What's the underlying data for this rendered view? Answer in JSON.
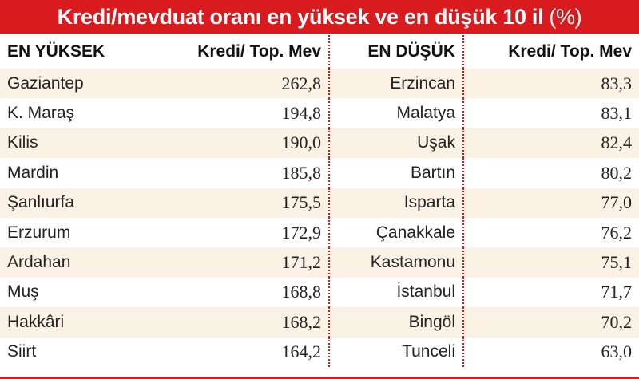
{
  "title": "Kredi/mevduat oranı en yüksek ve en düşük 10 il",
  "title_unit": "(%)",
  "headers": {
    "high_label": "EN YÜKSEK",
    "high_value": "Kredi/ Top. Mev",
    "low_label": "EN DÜŞÜK",
    "low_value": "Kredi/ Top. Mev"
  },
  "rows": [
    {
      "high_city": "Gaziantep",
      "high_value": "262,8",
      "low_city": "Erzincan",
      "low_value": "83,3"
    },
    {
      "high_city": "K. Maraş",
      "high_value": "194,8",
      "low_city": "Malatya",
      "low_value": "83,1"
    },
    {
      "high_city": "Kilis",
      "high_value": "190,0",
      "low_city": "Uşak",
      "low_value": "82,4"
    },
    {
      "high_city": "Mardin",
      "high_value": "185,8",
      "low_city": "Bartın",
      "low_value": "80,2"
    },
    {
      "high_city": "Şanlıurfa",
      "high_value": "175,5",
      "low_city": "Isparta",
      "low_value": "77,0"
    },
    {
      "high_city": "Erzurum",
      "high_value": "172,9",
      "low_city": "Çanakkale",
      "low_value": "76,2"
    },
    {
      "high_city": "Ardahan",
      "high_value": "171,2",
      "low_city": "Kastamonu",
      "low_value": "75,1"
    },
    {
      "high_city": "Muş",
      "high_value": "168,8",
      "low_city": "İstanbul",
      "low_value": "71,7"
    },
    {
      "high_city": "Hakkâri",
      "high_value": "168,2",
      "low_city": "Bingöl",
      "low_value": "70,2"
    },
    {
      "high_city": "Siirt",
      "high_value": "164,2",
      "low_city": "Tunceli",
      "low_value": "63,0"
    }
  ],
  "colors": {
    "accent": "#d91a1f",
    "stripe": "#fbf1e4"
  }
}
